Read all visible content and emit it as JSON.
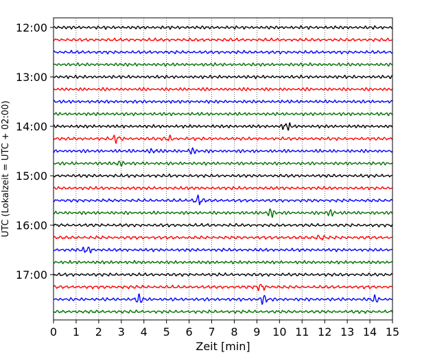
{
  "chart_data": {
    "type": "line",
    "title": "",
    "xlabel": "Zeit  [min]",
    "ylabel": "UTC (Lokalzeit = UTC + 02:00)",
    "xlim": [
      0,
      15
    ],
    "x_ticks": [
      "0",
      "1",
      "2",
      "3",
      "4",
      "5",
      "6",
      "7",
      "8",
      "9",
      "10",
      "11",
      "12",
      "13",
      "14",
      "15"
    ],
    "y_tick_labels": [
      "12:00",
      "13:00",
      "14:00",
      "15:00",
      "16:00",
      "17:00"
    ],
    "y_range": [
      "12:00",
      "18:00"
    ],
    "trace_interval_minutes": 15,
    "trace_count": 24,
    "color_cycle": [
      "#000000",
      "#ff0000",
      "#0000ff",
      "#007000"
    ],
    "grid": {
      "vertical_dotted": true,
      "horizontal": false
    },
    "events": [
      {
        "trace": 8,
        "minute": 10.3,
        "amplitude": 1.8
      },
      {
        "trace": 9,
        "minute": 2.8,
        "amplitude": 1.6
      },
      {
        "trace": 9,
        "minute": 5.1,
        "amplitude": 1.1
      },
      {
        "trace": 10,
        "minute": 4.4,
        "amplitude": 1.3
      },
      {
        "trace": 10,
        "minute": 6.1,
        "amplitude": 1.1
      },
      {
        "trace": 11,
        "minute": 2.9,
        "amplitude": 1.2
      },
      {
        "trace": 14,
        "minute": 6.4,
        "amplitude": 2.2
      },
      {
        "trace": 15,
        "minute": 9.6,
        "amplitude": 1.7
      },
      {
        "trace": 15,
        "minute": 12.3,
        "amplitude": 1.2
      },
      {
        "trace": 17,
        "minute": 11.8,
        "amplitude": 1.1
      },
      {
        "trace": 18,
        "minute": 1.5,
        "amplitude": 1.5
      },
      {
        "trace": 21,
        "minute": 9.2,
        "amplitude": 1.6
      },
      {
        "trace": 22,
        "minute": 3.8,
        "amplitude": 1.8
      },
      {
        "trace": 22,
        "minute": 9.3,
        "amplitude": 1.8
      },
      {
        "trace": 22,
        "minute": 14.2,
        "amplitude": 1.3
      }
    ]
  }
}
